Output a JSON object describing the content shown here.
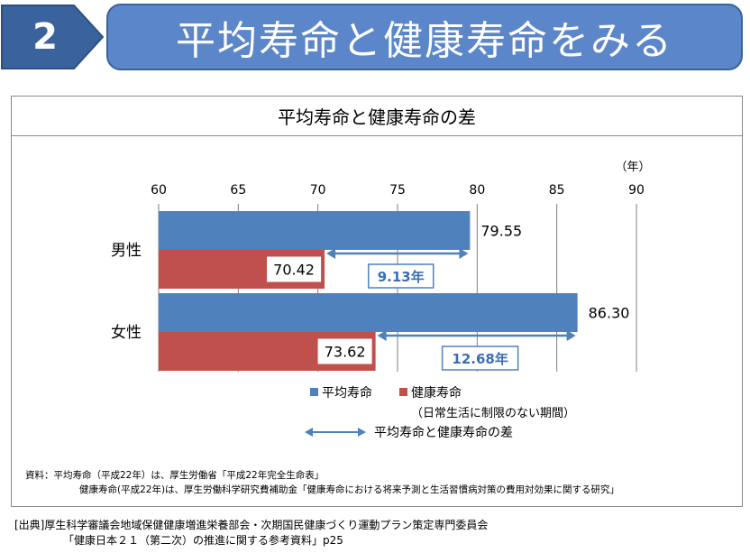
{
  "header": {
    "number": "2",
    "title": "平均寿命と健康寿命をみる"
  },
  "chart_data": {
    "type": "bar",
    "title": "平均寿命と健康寿命の差",
    "unit_label": "（年）",
    "xlim": [
      60,
      90
    ],
    "x_ticks": [
      "60",
      "65",
      "70",
      "75",
      "80",
      "85",
      "90"
    ],
    "categories": [
      "男性",
      "女性"
    ],
    "series": [
      {
        "name": "平均寿命",
        "color": "#4f81bd",
        "values": [
          79.55,
          86.3
        ],
        "labels": [
          "79.55",
          "86.30"
        ]
      },
      {
        "name": "健康寿命",
        "color": "#c0504d",
        "values": [
          70.42,
          73.62
        ],
        "labels": [
          "70.42",
          "73.62"
        ]
      }
    ],
    "differences": [
      "9.13年",
      "12.68年"
    ],
    "legend": {
      "items": [
        "平均寿命",
        "健康寿命"
      ],
      "healthy_note": "（日常生活に制限のない期間）",
      "arrow_label": "平均寿命と健康寿命の差"
    },
    "colors": {
      "diff": "#4f81bd",
      "diff_text": "#3c6eb4"
    }
  },
  "source": {
    "line1": "資料：平均寿命（平成22年）は、厚生労働省「平成22年完全生命表」",
    "line2": "健康寿命(平成22年)は、厚生労働科学研究費補助金「健康寿命における将来予測と生活習慣病対策の費用対効果に関する研究」"
  },
  "citation": {
    "line1": "[出典]厚生科学審議会地域保健健康増進栄養部会・次期国民健康づくり運動プラン策定専門委員会",
    "line2": "「健康日本２１（第二次）の推進に関する参考資料」p25"
  }
}
